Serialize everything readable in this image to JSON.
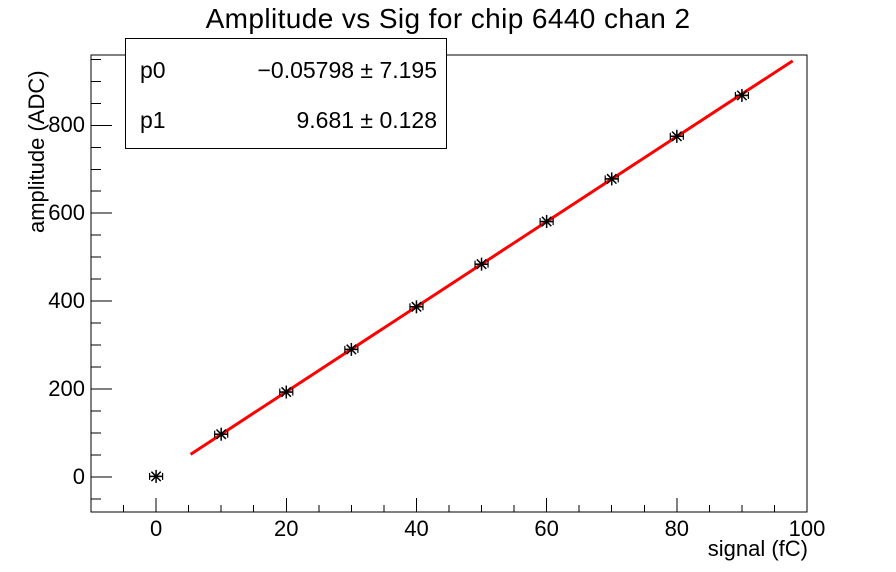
{
  "title": "Amplitude vs Sig for chip 6440 chan 2",
  "stats_box": {
    "rows": [
      {
        "param": "p0",
        "value": "−0.05798 ± 7.195"
      },
      {
        "param": "p1",
        "value": "9.681 ± 0.128"
      }
    ]
  },
  "colors": {
    "background": "#ffffff",
    "axis": "#000000",
    "text": "#000000",
    "fit_line": "#ff0000",
    "marker": "#000000"
  },
  "chart_data": {
    "type": "scatter",
    "title": "Amplitude vs Sig for chip 6440 chan 2",
    "xlabel": "signal (fC)",
    "ylabel": "amplitude (ADC)",
    "xlim": [
      -10,
      100
    ],
    "ylim": [
      -80,
      960
    ],
    "x_major_ticks": [
      0,
      20,
      40,
      60,
      80,
      100
    ],
    "x_minor_step": 5,
    "y_major_ticks": [
      0,
      200,
      400,
      600,
      800
    ],
    "y_minor_step": 50,
    "grid": false,
    "legend": "none",
    "marker_style": "asterisk-with-x-error-bars",
    "points": {
      "x": [
        0,
        10,
        20,
        30,
        40,
        50,
        60,
        70,
        80,
        90
      ],
      "y": [
        1,
        97,
        193,
        290,
        387,
        484,
        581,
        678,
        775,
        868
      ],
      "x_err": 1
    },
    "fit": {
      "type": "linear",
      "p0": -0.05798,
      "p0_err": 7.195,
      "p1": 9.681,
      "p1_err": 0.128,
      "x_range": [
        5.3,
        97.8
      ]
    }
  }
}
